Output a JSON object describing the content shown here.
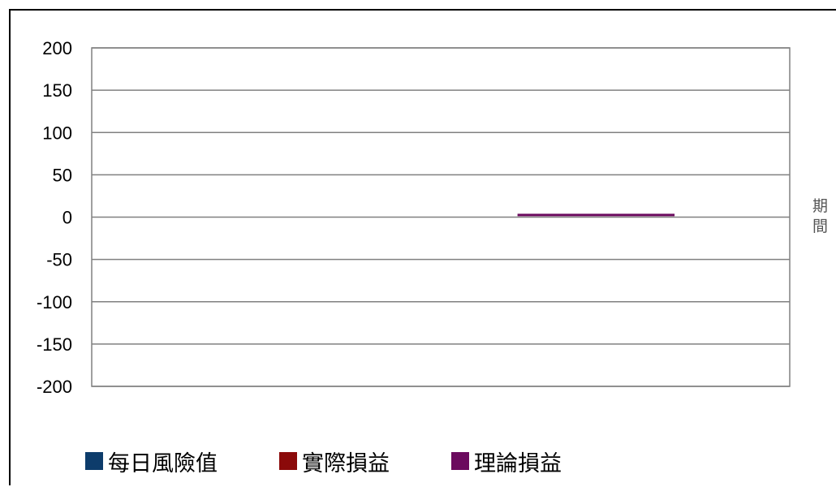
{
  "chart_data": {
    "type": "line",
    "title": "",
    "xlabel": "",
    "ylabel": "",
    "ylim": [
      -200,
      200
    ],
    "yticks": [
      200,
      150,
      100,
      50,
      0,
      -50,
      -100,
      -150,
      -200
    ],
    "yticks_text": [
      "200",
      "150",
      "100",
      "50",
      "0",
      "-50",
      "-100",
      "-150",
      "-200"
    ],
    "grid": true,
    "legend_position": "bottom",
    "x_range": [
      0,
      1
    ],
    "side_text": [
      "期",
      "間"
    ],
    "series": [
      {
        "name": "每日風險值",
        "color": "#0d3c6b",
        "points": []
      },
      {
        "name": "實際損益",
        "color": "#8b0a0a",
        "points": []
      },
      {
        "name": "理論損益",
        "color": "#6b0a5e",
        "points": [
          [
            0.61,
            2.5
          ],
          [
            0.835,
            2.5
          ]
        ]
      }
    ]
  }
}
